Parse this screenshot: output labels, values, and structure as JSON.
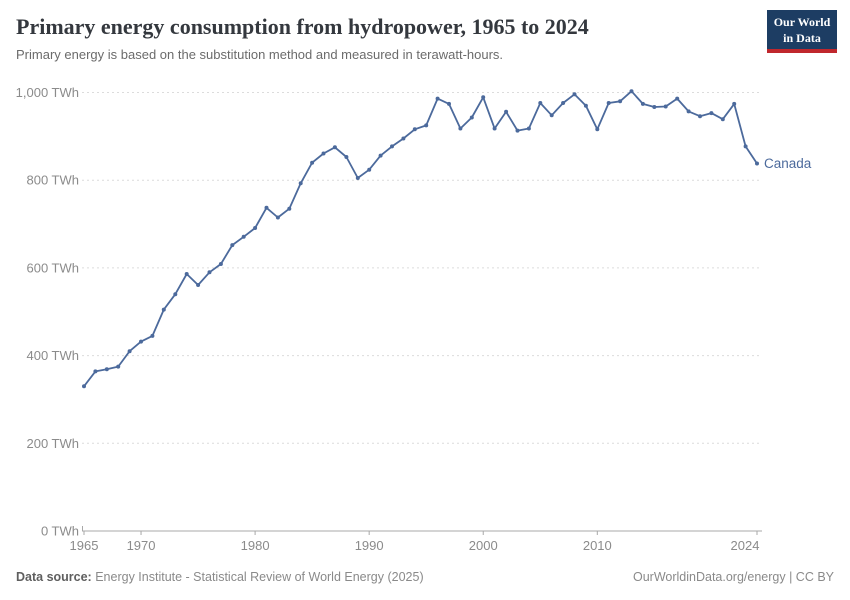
{
  "header": {
    "title": "Primary energy consumption from hydropower, 1965 to 2024",
    "subtitle": "Primary energy is based on the substitution method and measured in terawatt-hours.",
    "logo": {
      "line1": "Our World",
      "line2": "in Data"
    }
  },
  "colors": {
    "line": "#4c6a9c",
    "logo_bg": "#1d3d63",
    "logo_red": "#c0272d",
    "gridline": "#dcdcdc",
    "axis_text": "#8b8b8b"
  },
  "chart_data": {
    "type": "line",
    "title": "Primary energy consumption from hydropower, 1965 to 2024",
    "subtitle": "Primary energy is based on the substitution method and measured in terawatt-hours.",
    "unit": "TWh",
    "xlabel": "",
    "ylabel": "TWh",
    "xlim": [
      1965,
      2024
    ],
    "ylim": [
      0,
      1000
    ],
    "grid": "horizontal-dashed",
    "legend_position": "end-of-line-label",
    "x": [
      1965,
      1966,
      1967,
      1968,
      1969,
      1970,
      1971,
      1972,
      1973,
      1974,
      1975,
      1976,
      1977,
      1978,
      1979,
      1980,
      1981,
      1982,
      1983,
      1984,
      1985,
      1986,
      1987,
      1988,
      1989,
      1990,
      1991,
      1992,
      1993,
      1994,
      1995,
      1996,
      1997,
      1998,
      1999,
      2000,
      2001,
      2002,
      2003,
      2004,
      2005,
      2006,
      2007,
      2008,
      2009,
      2010,
      2011,
      2012,
      2013,
      2014,
      2015,
      2016,
      2017,
      2018,
      2019,
      2020,
      2021,
      2022,
      2023,
      2024
    ],
    "series": [
      {
        "name": "Canada",
        "values": [
          330,
          364,
          369,
          375,
          410,
          432,
          445,
          505,
          540,
          586,
          561,
          590,
          609,
          652,
          671,
          691,
          737,
          715,
          735,
          793,
          840,
          861,
          875,
          853,
          805,
          824,
          856,
          877,
          895,
          916,
          925,
          986,
          974,
          918,
          943,
          989,
          918,
          956,
          913,
          918,
          976,
          948,
          976,
          996,
          970,
          916,
          976,
          980,
          1003,
          974,
          967,
          968,
          986,
          957,
          946,
          953,
          939,
          974,
          877,
          838
        ]
      }
    ],
    "y_ticks": [
      {
        "value": 1000,
        "label": "1,000 TWh"
      },
      {
        "value": 800,
        "label": "800 TWh"
      },
      {
        "value": 600,
        "label": "600 TWh"
      },
      {
        "value": 400,
        "label": "400 TWh"
      },
      {
        "value": 200,
        "label": "200 TWh"
      },
      {
        "value": 0,
        "label": "0 TWh"
      }
    ],
    "x_ticks": [
      {
        "value": 1965,
        "label": "1965"
      },
      {
        "value": 1970,
        "label": "1970"
      },
      {
        "value": 1980,
        "label": "1980"
      },
      {
        "value": 1990,
        "label": "1990"
      },
      {
        "value": 2000,
        "label": "2000"
      },
      {
        "value": 2010,
        "label": "2010"
      },
      {
        "value": 2024,
        "label": "2024"
      }
    ]
  },
  "footer": {
    "datasource_label": "Data source:",
    "datasource_text": "Energy Institute - Statistical Review of World Energy (2025)",
    "rights": "OurWorldinData.org/energy | CC BY"
  }
}
